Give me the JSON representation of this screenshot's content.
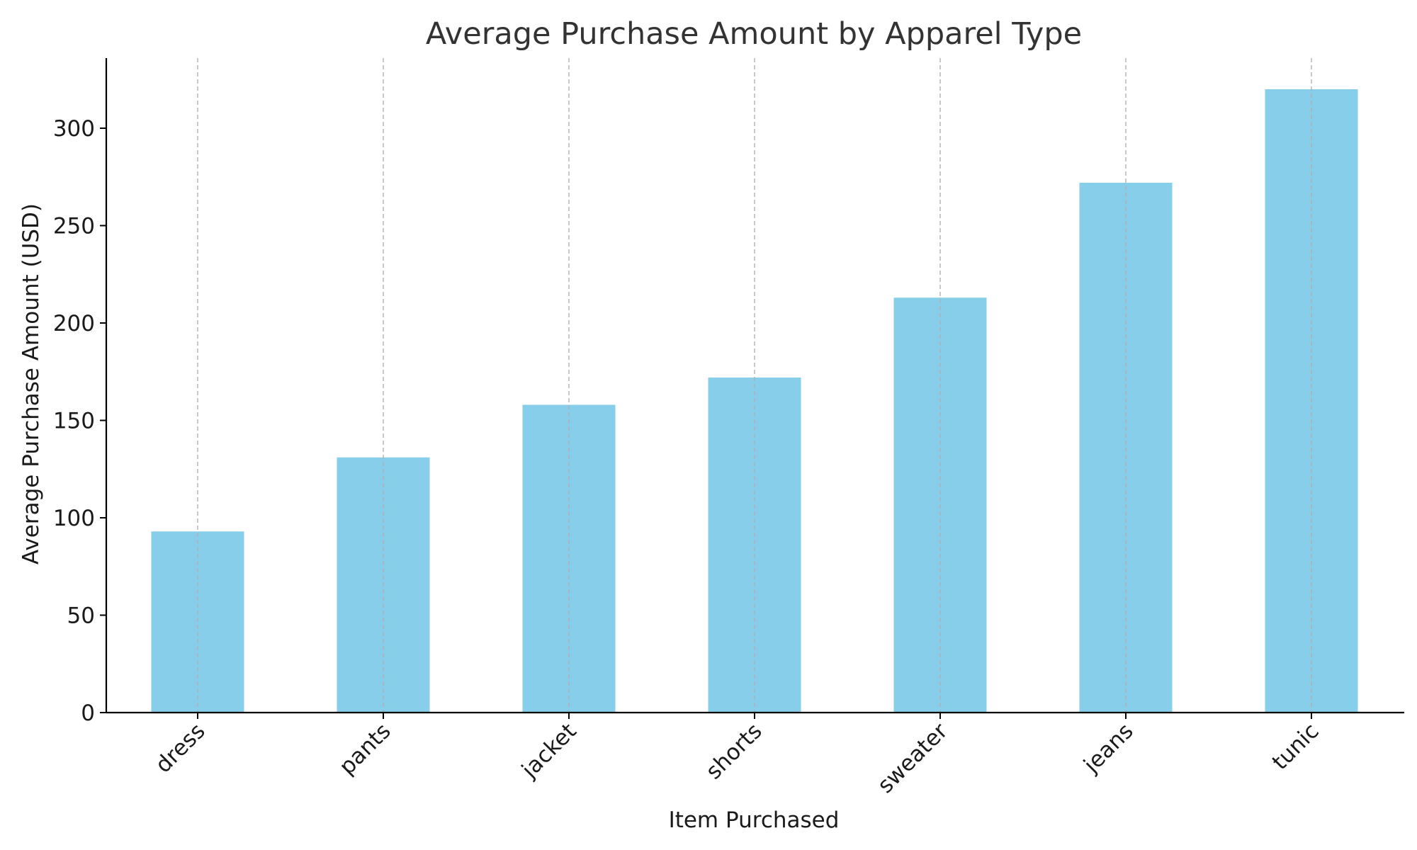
{
  "chart_data": {
    "type": "bar",
    "title": "Average Purchase Amount by Apparel Type",
    "xlabel": "Item Purchased",
    "ylabel": "Average Purchase Amount (USD)",
    "categories": [
      "dress",
      "pants",
      "jacket",
      "shorts",
      "sweater",
      "jeans",
      "tunic"
    ],
    "values": [
      93,
      131,
      158,
      172,
      213,
      272,
      320
    ],
    "ylim": [
      0,
      336
    ],
    "yticks": [
      0,
      50,
      100,
      150,
      200,
      250,
      300
    ],
    "ytick_labels": [
      "0",
      "50",
      "100",
      "150",
      "200",
      "250",
      "300"
    ],
    "bar_color": "#87CEEB",
    "grid": "vertical dashed",
    "grid_color": "#b0b0b0",
    "axis_color": "#000000",
    "tick_label_rotation": 45
  }
}
